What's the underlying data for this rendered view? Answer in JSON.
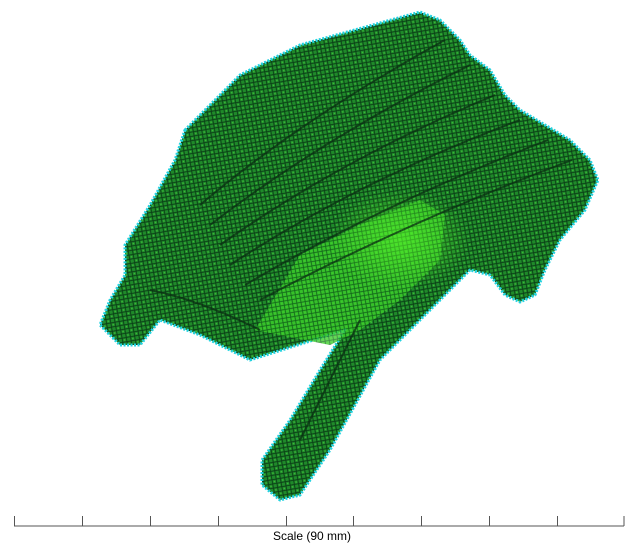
{
  "scale": {
    "label": "Scale (90 mm)"
  }
}
